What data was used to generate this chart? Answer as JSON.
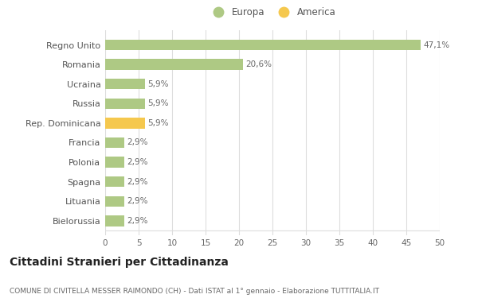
{
  "categories": [
    "Bielorussia",
    "Lituania",
    "Spagna",
    "Polonia",
    "Francia",
    "Rep. Dominicana",
    "Russia",
    "Ucraina",
    "Romania",
    "Regno Unito"
  ],
  "values": [
    2.9,
    2.9,
    2.9,
    2.9,
    2.9,
    5.9,
    5.9,
    5.9,
    20.6,
    47.1
  ],
  "labels": [
    "2,9%",
    "2,9%",
    "2,9%",
    "2,9%",
    "2,9%",
    "5,9%",
    "5,9%",
    "5,9%",
    "20,6%",
    "47,1%"
  ],
  "colors": [
    "#aec984",
    "#aec984",
    "#aec984",
    "#aec984",
    "#aec984",
    "#f5c84e",
    "#aec984",
    "#aec984",
    "#aec984",
    "#aec984"
  ],
  "europa_color": "#aec984",
  "america_color": "#f5c84e",
  "background_color": "#ffffff",
  "grid_color": "#dddddd",
  "title": "Cittadini Stranieri per Cittadinanza",
  "subtitle": "COMUNE DI CIVITELLA MESSER RAIMONDO (CH) - Dati ISTAT al 1° gennaio - Elaborazione TUTTITALIA.IT",
  "legend_europa": "Europa",
  "legend_america": "America",
  "xlim": [
    0,
    50
  ],
  "xticks": [
    0,
    5,
    10,
    15,
    20,
    25,
    30,
    35,
    40,
    45,
    50
  ]
}
